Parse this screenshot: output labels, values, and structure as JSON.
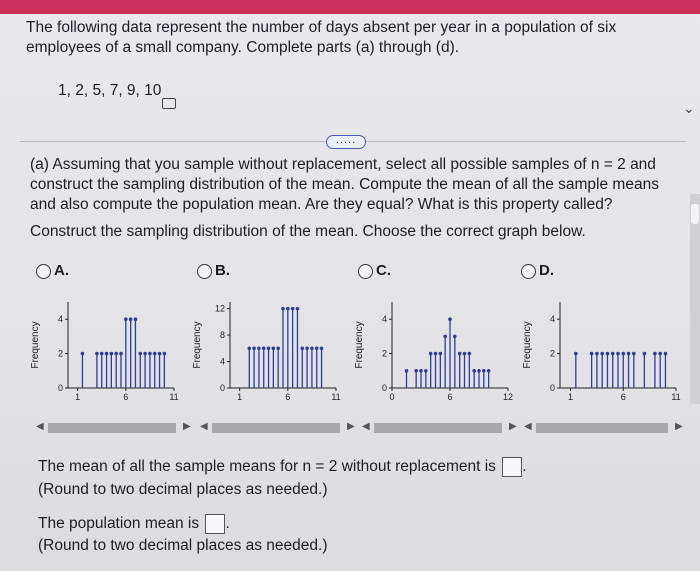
{
  "problem": {
    "intro": "The following data represent the number of days absent per year in a population of six employees of a small company. Complete parts (a) through (d).",
    "data_values": "1, 2, 5, 7, 9, 10",
    "expand_button": "....."
  },
  "part_a": {
    "question": "(a) Assuming that you sample without replacement, select all possible samples of n = 2 and construct the sampling distribution of the mean. Compute the mean of all the sample means and also compute the population mean. Are they equal? What is this property called?",
    "instruction": "Construct the sampling distribution of the mean. Choose the correct graph below."
  },
  "options": [
    {
      "letter": "A.",
      "ylabel": "Frequency",
      "yticks": [
        "4",
        "2",
        "0"
      ],
      "xticks": [
        "1",
        "6",
        "11"
      ]
    },
    {
      "letter": "B.",
      "ylabel": "Frequency",
      "yticks": [
        "12",
        "8",
        "4",
        "0"
      ],
      "xticks": [
        "1",
        "6",
        "11"
      ]
    },
    {
      "letter": "C.",
      "ylabel": "Frequency",
      "yticks": [
        "4",
        "2",
        "0"
      ],
      "xticks": [
        "0",
        "6",
        "12"
      ]
    },
    {
      "letter": "D.",
      "ylabel": "Frequency",
      "yticks": [
        "4",
        "2",
        "0"
      ],
      "xticks": [
        "1",
        "6",
        "11"
      ]
    }
  ],
  "answers": {
    "mean_of_means_text": "The mean of all the sample means for n = 2 without replacement is",
    "mean_of_means_note": "(Round to two decimal places as needed.)",
    "population_mean_text": "The population mean is",
    "population_mean_note": "(Round to two decimal places as needed.)"
  },
  "chart_data": [
    {
      "type": "bar",
      "title": "A.",
      "xlabel": "",
      "ylabel": "Frequency",
      "ylim": [
        0,
        5
      ],
      "xlim": [
        0,
        11
      ],
      "x": [
        1.5,
        3,
        3.5,
        4,
        4.5,
        5,
        5.5,
        6,
        6.5,
        7,
        7.5,
        8,
        8.5,
        9,
        9.5,
        10
      ],
      "values": [
        2,
        2,
        2,
        2,
        2,
        2,
        2,
        4,
        4,
        4,
        2,
        2,
        2,
        2,
        2,
        2
      ]
    },
    {
      "type": "bar",
      "title": "B.",
      "xlabel": "",
      "ylabel": "Frequency",
      "ylim": [
        0,
        13
      ],
      "xlim": [
        0,
        11
      ],
      "x": [
        2,
        2.5,
        3,
        3.5,
        4,
        4.5,
        5,
        5.5,
        6,
        6.5,
        7,
        7.5,
        8,
        8.5,
        9,
        9.5
      ],
      "values": [
        6,
        6,
        6,
        6,
        6,
        6,
        6,
        12,
        12,
        12,
        12,
        6,
        6,
        6,
        6,
        6
      ]
    },
    {
      "type": "bar",
      "title": "C.",
      "xlabel": "",
      "ylabel": "Frequency",
      "ylim": [
        0,
        5
      ],
      "xlim": [
        0,
        12
      ],
      "x": [
        1.5,
        2.5,
        3,
        3.5,
        4,
        4.5,
        5,
        5.5,
        6,
        6.5,
        7,
        7.5,
        8,
        8.5,
        9,
        9.5,
        10
      ],
      "values": [
        1,
        1,
        1,
        1,
        2,
        2,
        2,
        3,
        4,
        3,
        2,
        2,
        2,
        1,
        1,
        1,
        1
      ]
    },
    {
      "type": "bar",
      "title": "D.",
      "xlabel": "",
      "ylabel": "Frequency",
      "ylim": [
        0,
        5
      ],
      "xlim": [
        0,
        11
      ],
      "x": [
        1.5,
        3,
        3.5,
        4,
        4.5,
        5,
        5.5,
        6,
        6.5,
        7,
        8,
        9,
        9.5,
        10
      ],
      "values": [
        2,
        2,
        2,
        2,
        2,
        2,
        2,
        2,
        2,
        2,
        2,
        2,
        2,
        2
      ]
    }
  ]
}
